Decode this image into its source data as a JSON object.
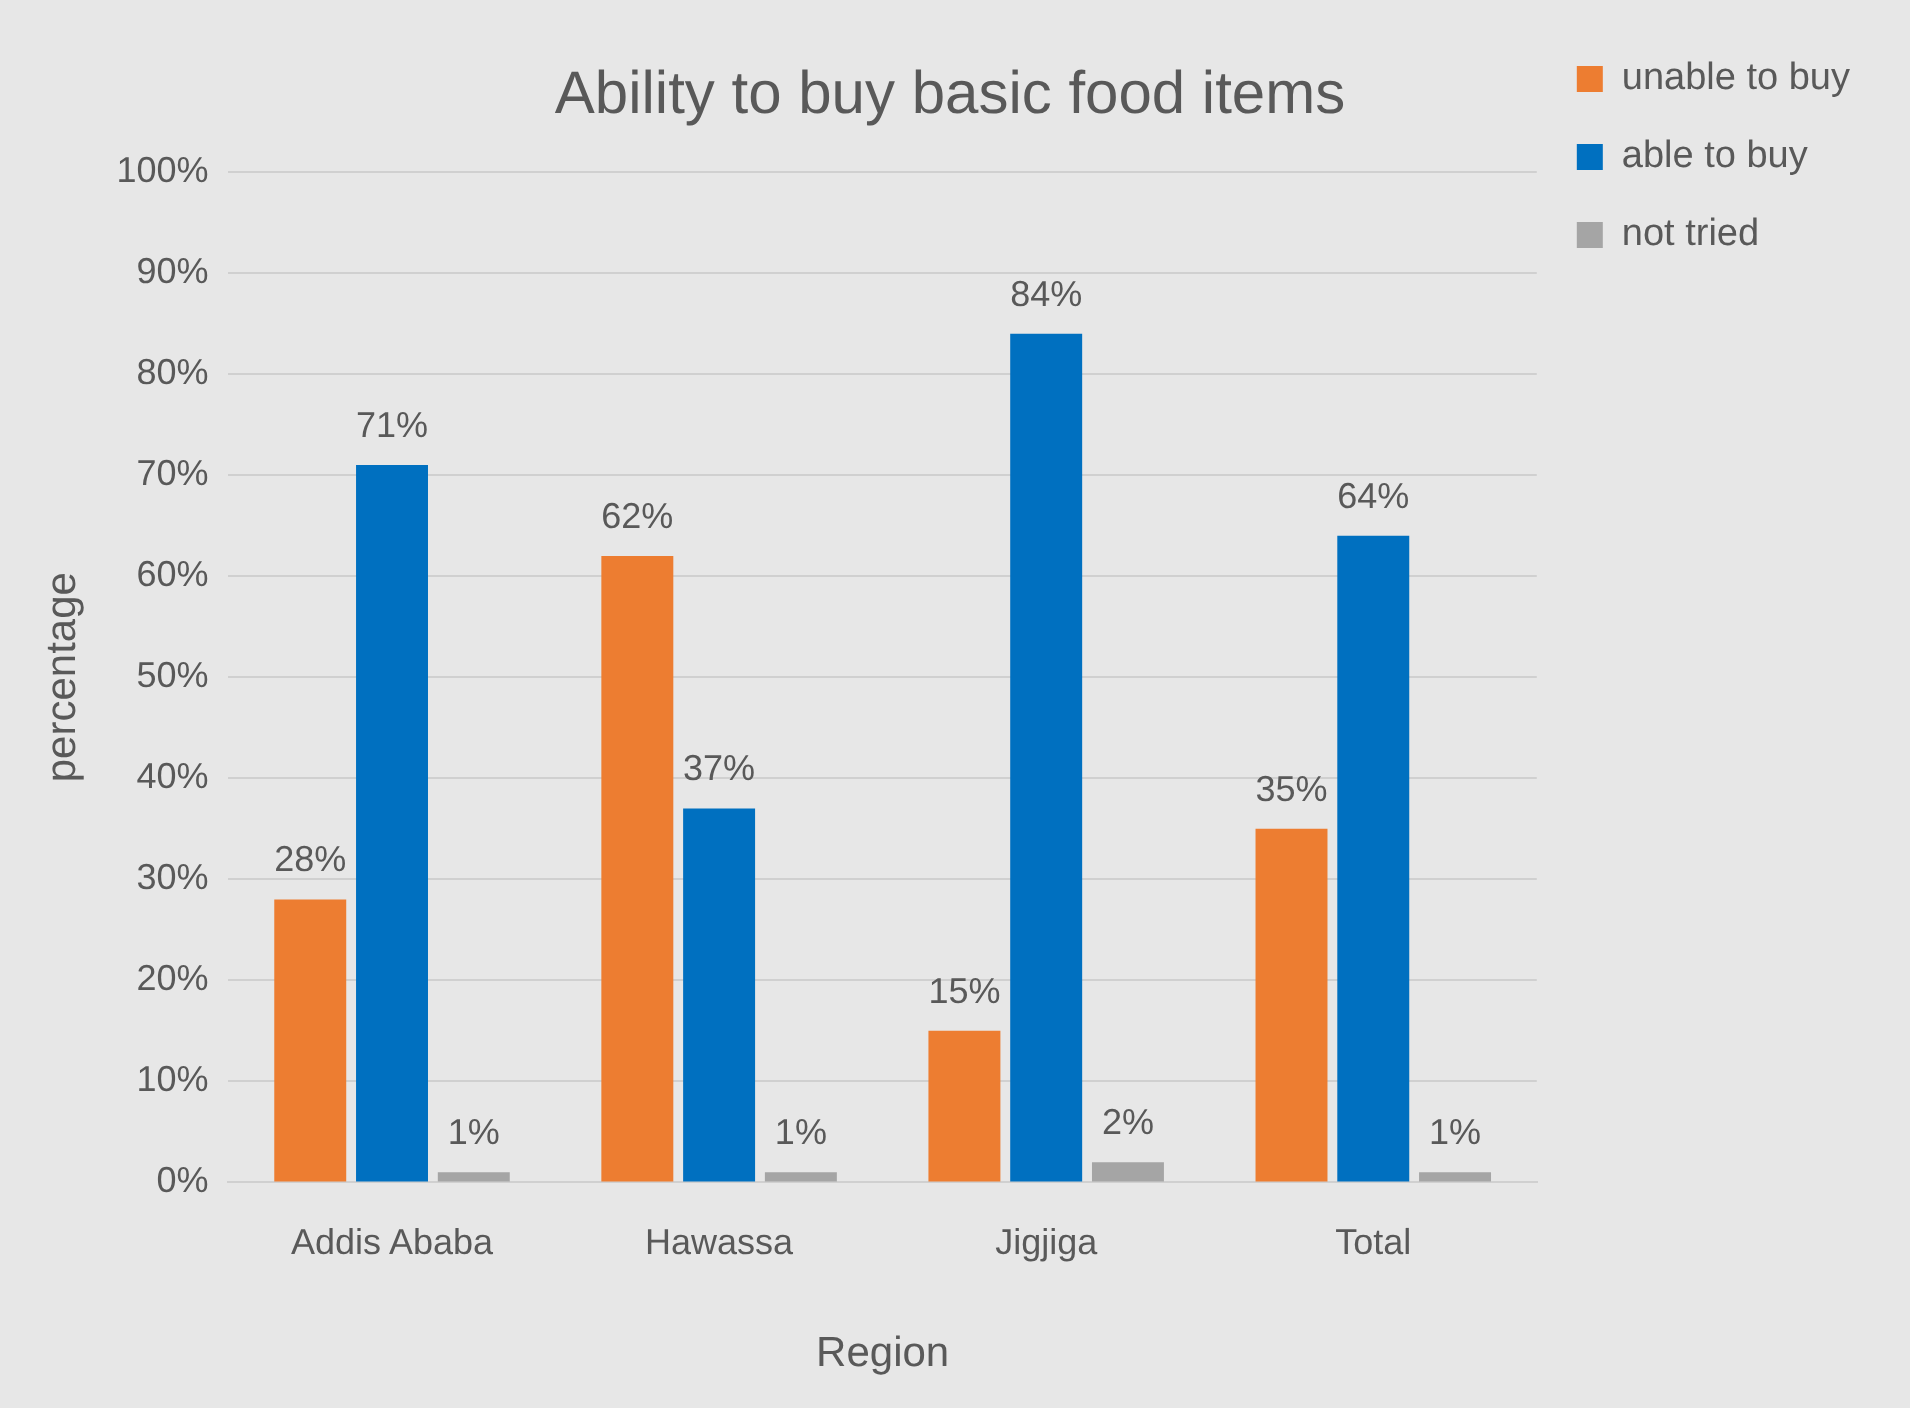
{
  "chart_data": {
    "type": "bar",
    "title": "Ability to buy basic food items",
    "xlabel": "Region",
    "ylabel": "percentage",
    "categories": [
      "Addis Ababa",
      "Hawassa",
      "Jigjiga",
      "Total"
    ],
    "series": [
      {
        "name": "unable to buy",
        "color": "#ed7d31",
        "values": [
          28,
          62,
          15,
          35
        ],
        "value_labels": [
          "28%",
          "62%",
          "15%",
          "35%"
        ]
      },
      {
        "name": "able to buy",
        "color": "#0070c0",
        "values": [
          71,
          37,
          84,
          64
        ],
        "value_labels": [
          "71%",
          "37%",
          "84%",
          "64%"
        ]
      },
      {
        "name": "not tried",
        "color": "#a5a5a5",
        "values": [
          1,
          1,
          2,
          1
        ],
        "value_labels": [
          "1%",
          "1%",
          "2%",
          "1%"
        ]
      }
    ],
    "ylim": [
      0,
      100
    ],
    "yticks": [
      {
        "value": 0,
        "label": "0%"
      },
      {
        "value": 10,
        "label": "10%"
      },
      {
        "value": 20,
        "label": "20%"
      },
      {
        "value": 30,
        "label": "30%"
      },
      {
        "value": 40,
        "label": "40%"
      },
      {
        "value": 50,
        "label": "50%"
      },
      {
        "value": 60,
        "label": "60%"
      },
      {
        "value": 70,
        "label": "70%"
      },
      {
        "value": 80,
        "label": "80%"
      },
      {
        "value": 90,
        "label": "90%"
      },
      {
        "value": 100,
        "label": "100%"
      }
    ],
    "grid": "y",
    "legend": "top right"
  }
}
